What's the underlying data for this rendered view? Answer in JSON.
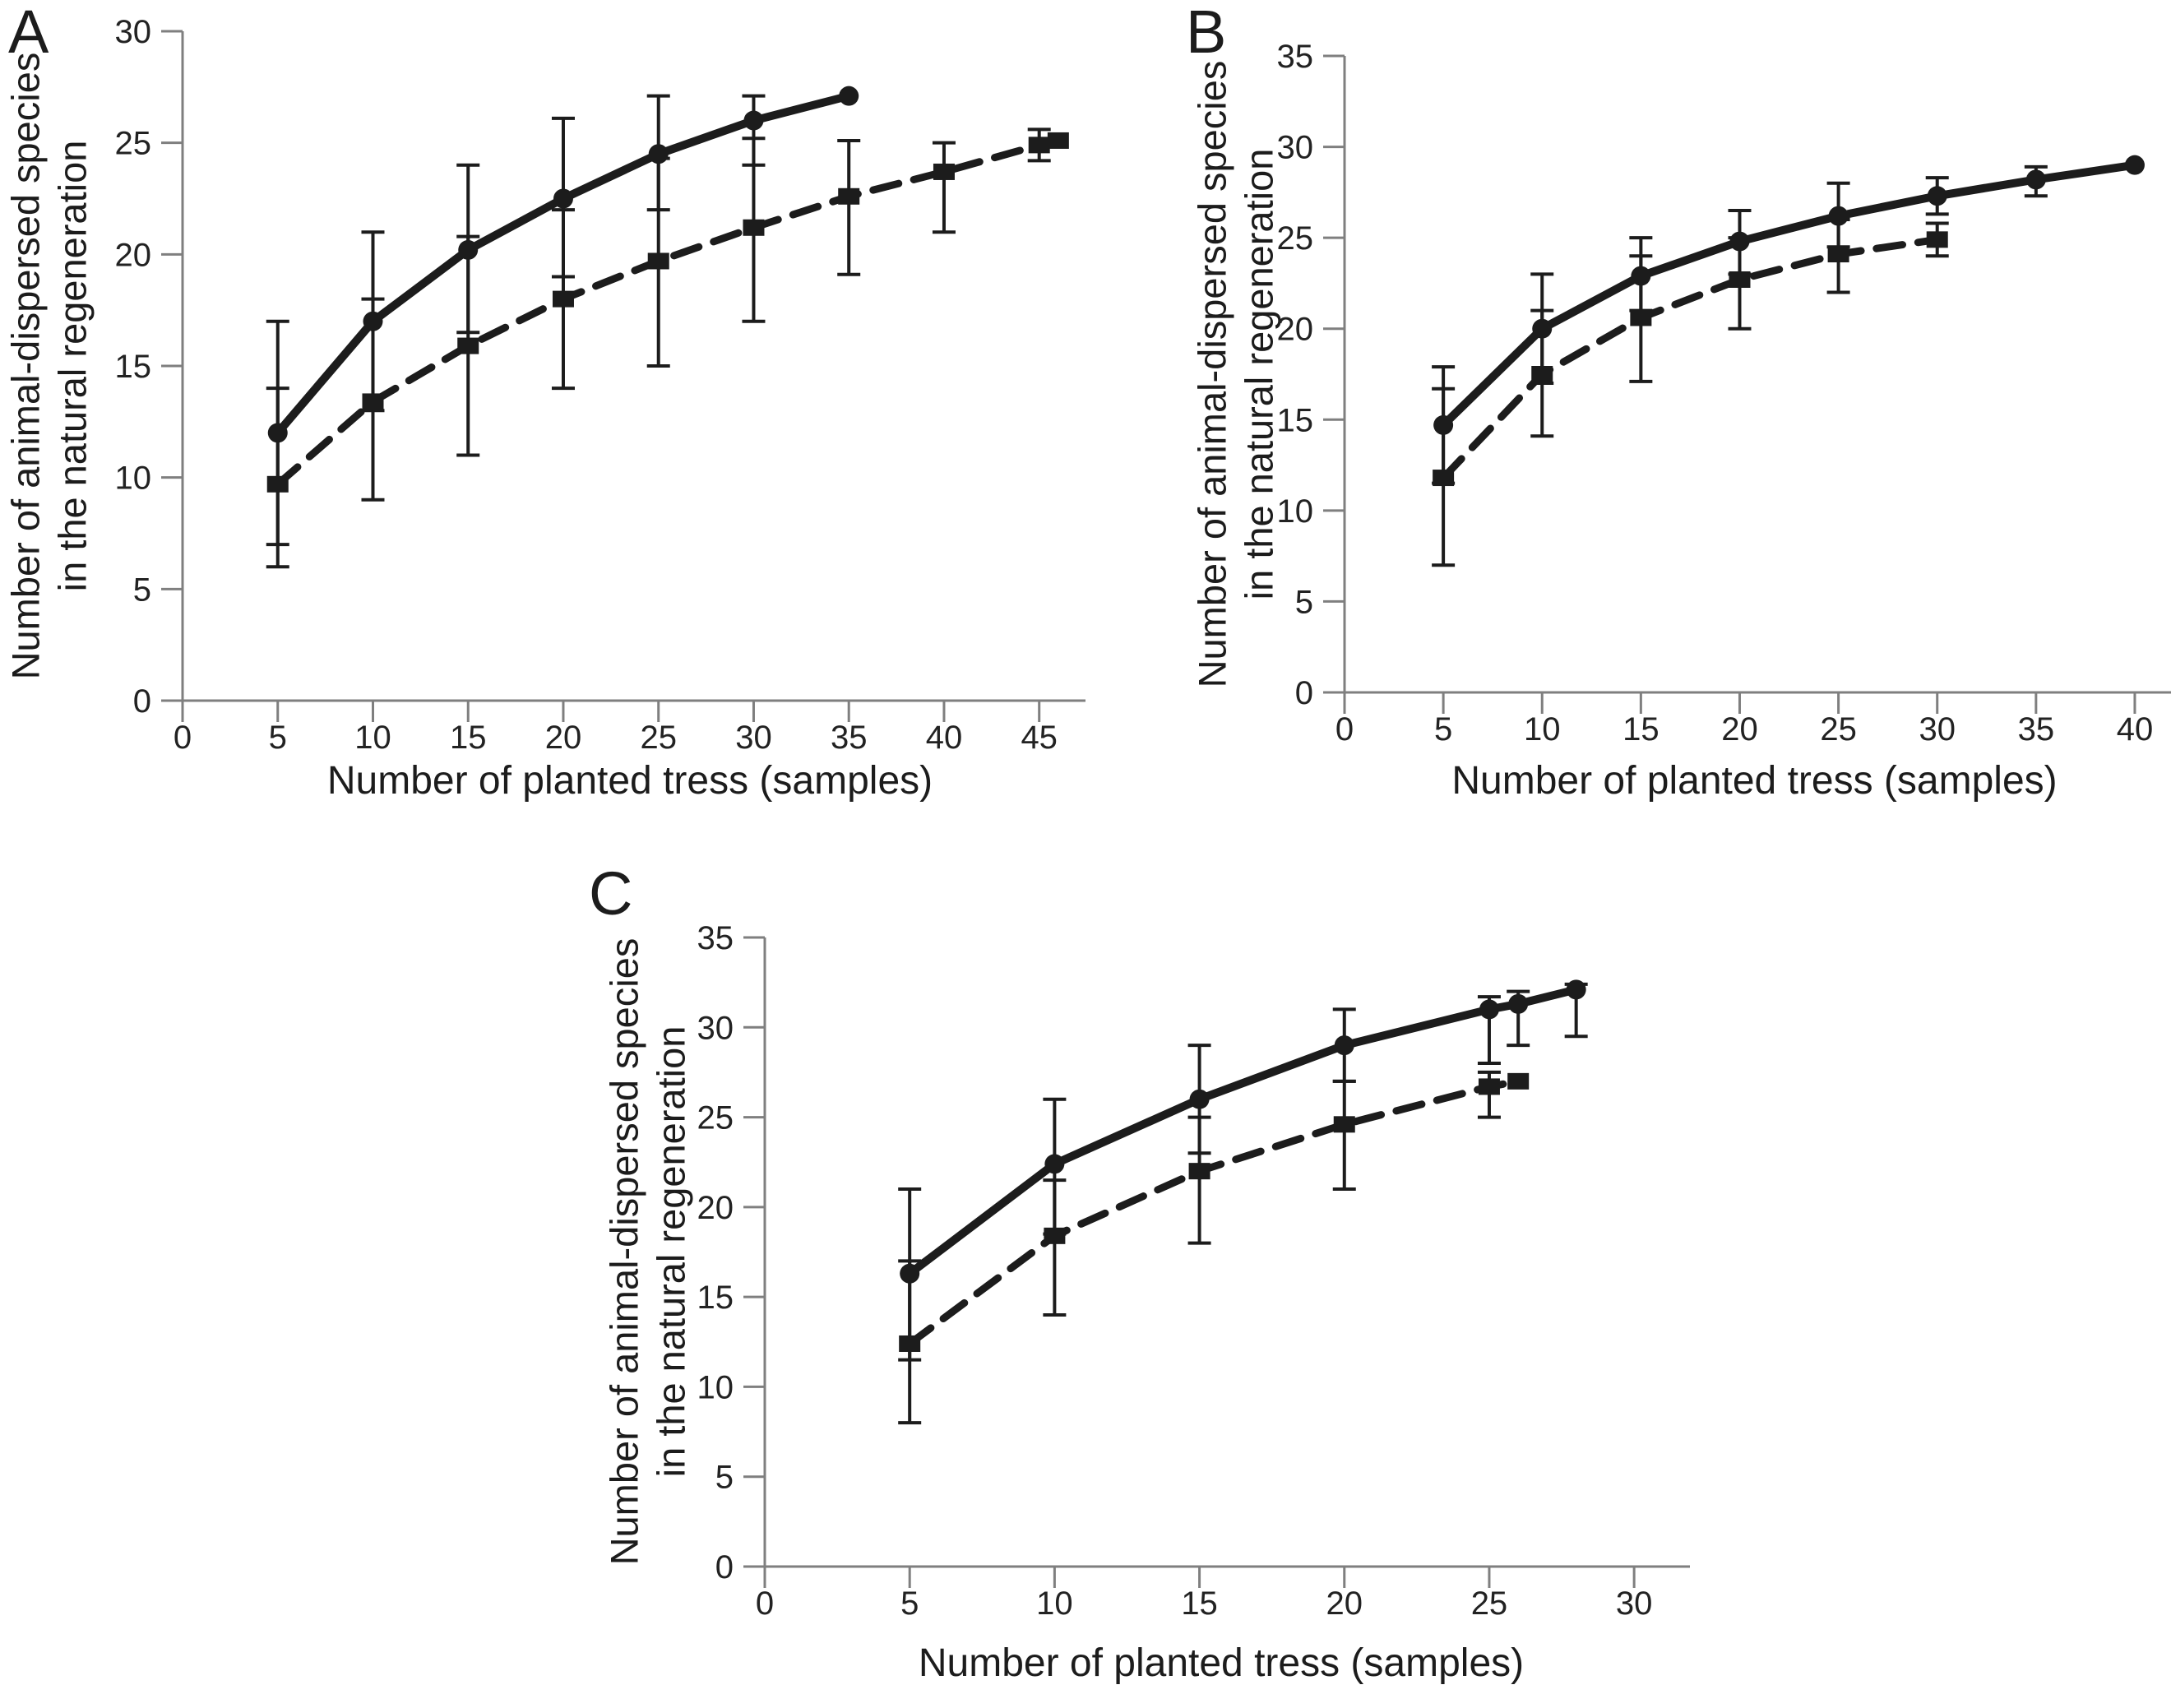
{
  "figure": {
    "background": "#ffffff",
    "ink_color": "#1c1c1c",
    "axis_color": "#7f7f7f",
    "xlabel": "Number of planted tress (samples)",
    "ylabel_line1": "Number of animal-dispersed species",
    "ylabel_line2": "in the natural regeneration"
  },
  "panels": [
    {
      "label": "A",
      "xlabel": "Number of planted tress (samples)",
      "ylabel_line1": "Number of animal-dispersed species",
      "ylabel_line2": "in the natural regeneration"
    },
    {
      "label": "B",
      "xlabel": "Number of planted tress (samples)",
      "ylabel_line1": "Number of animal-dispersed species",
      "ylabel_line2": "in the natural regeneration"
    },
    {
      "label": "C",
      "xlabel": "Number of planted tress (samples)",
      "ylabel_line1": "Number of animal-dispersed species",
      "ylabel_line2": "in the natural regeneration"
    }
  ],
  "chart_data": [
    {
      "panel": "A",
      "type": "line",
      "title": "",
      "xlabel": "Number of planted tress (samples)",
      "ylabel": "Number of animal-dispersed species in the natural regeneration",
      "xlim": [
        0,
        47
      ],
      "ylim": [
        0,
        30
      ],
      "xticks": [
        0,
        5,
        10,
        15,
        20,
        25,
        30,
        35,
        40,
        45
      ],
      "yticks": [
        0,
        5,
        10,
        15,
        20,
        25,
        30
      ],
      "legend": "none",
      "grid": false,
      "series": [
        {
          "name": "solid_circles",
          "marker": "circle",
          "linestyle": "solid",
          "x": [
            5,
            10,
            15,
            20,
            25,
            30,
            35
          ],
          "y": [
            12,
            17,
            20.2,
            22.5,
            24.5,
            26,
            27.1
          ],
          "err_up": [
            5,
            4,
            3.8,
            3.6,
            2.6,
            1.1,
            0
          ],
          "err_down": [
            5,
            4,
            3.7,
            3.5,
            2.5,
            2,
            0
          ]
        },
        {
          "name": "dashed_squares",
          "marker": "square",
          "linestyle": "dashed",
          "x": [
            5,
            10,
            15,
            20,
            25,
            30,
            35,
            40,
            45,
            46
          ],
          "y": [
            9.7,
            13.4,
            15.9,
            18,
            19.7,
            21.2,
            22.6,
            23.7,
            24.9,
            25.1
          ],
          "err_up": [
            4.3,
            4.6,
            4.9,
            4,
            4.6,
            4,
            2.5,
            1.3,
            0.7,
            0
          ],
          "err_down": [
            3.7,
            4.4,
            4.9,
            4,
            4.7,
            4.2,
            3.5,
            2.7,
            0.7,
            0
          ]
        }
      ]
    },
    {
      "panel": "B",
      "type": "line",
      "title": "",
      "xlabel": "Number of planted tress (samples)",
      "ylabel": "Number of animal-dispersed species in the natural regeneration",
      "xlim": [
        0,
        41.5
      ],
      "ylim": [
        0,
        35
      ],
      "xticks": [
        0,
        5,
        10,
        15,
        20,
        25,
        30,
        35,
        40
      ],
      "yticks": [
        0,
        5,
        10,
        15,
        20,
        25,
        30,
        35
      ],
      "legend": "none",
      "grid": false,
      "series": [
        {
          "name": "solid_circles",
          "marker": "circle",
          "linestyle": "solid",
          "x": [
            5,
            10,
            15,
            20,
            25,
            30,
            35,
            40
          ],
          "y": [
            14.7,
            20,
            22.9,
            24.8,
            26.2,
            27.3,
            28.2,
            29
          ],
          "err_up": [
            3.2,
            3,
            2.1,
            1.7,
            1.8,
            1,
            0.7,
            0
          ],
          "err_down": [
            3.2,
            3,
            1.9,
            1.8,
            1.7,
            1,
            0.9,
            0
          ]
        },
        {
          "name": "dashed_squares",
          "marker": "square",
          "linestyle": "dashed",
          "x": [
            5,
            10,
            15,
            20,
            25,
            30
          ],
          "y": [
            11.8,
            17.5,
            20.6,
            22.7,
            24.1,
            24.9
          ],
          "err_up": [
            4.9,
            3.5,
            3.4,
            2.3,
            1.9,
            0.9
          ],
          "err_down": [
            4.8,
            3.4,
            3.5,
            2.7,
            2.1,
            0.9
          ]
        }
      ]
    },
    {
      "panel": "C",
      "type": "line",
      "title": "",
      "xlabel": "Number of planted tress (samples)",
      "ylabel": "Number of animal-dispersed species in the natural regeneration",
      "xlim": [
        0,
        31.5
      ],
      "ylim": [
        0,
        35
      ],
      "xticks": [
        0,
        5,
        10,
        15,
        20,
        25,
        30
      ],
      "yticks": [
        0,
        5,
        10,
        15,
        20,
        25,
        30,
        35
      ],
      "legend": "none",
      "grid": false,
      "series": [
        {
          "name": "solid_circles",
          "marker": "circle",
          "linestyle": "solid",
          "x": [
            5,
            10,
            15,
            20,
            25,
            26,
            28
          ],
          "y": [
            16.3,
            22.4,
            26,
            29,
            31,
            31.3,
            32.1
          ],
          "err_up": [
            4.7,
            3.6,
            3,
            2,
            0.7,
            0.7,
            0.3
          ],
          "err_down": [
            4.8,
            3.9,
            3,
            2,
            3,
            2.3,
            2.6
          ]
        },
        {
          "name": "dashed_squares",
          "marker": "square",
          "linestyle": "dashed",
          "x": [
            5,
            10,
            15,
            20,
            25,
            26
          ],
          "y": [
            12.4,
            18.4,
            22,
            24.6,
            26.7,
            27
          ],
          "err_up": [
            4.6,
            3.1,
            3,
            2.4,
            0.8,
            0
          ],
          "err_down": [
            4.4,
            4.4,
            4,
            3.6,
            1.7,
            0
          ]
        }
      ]
    }
  ]
}
